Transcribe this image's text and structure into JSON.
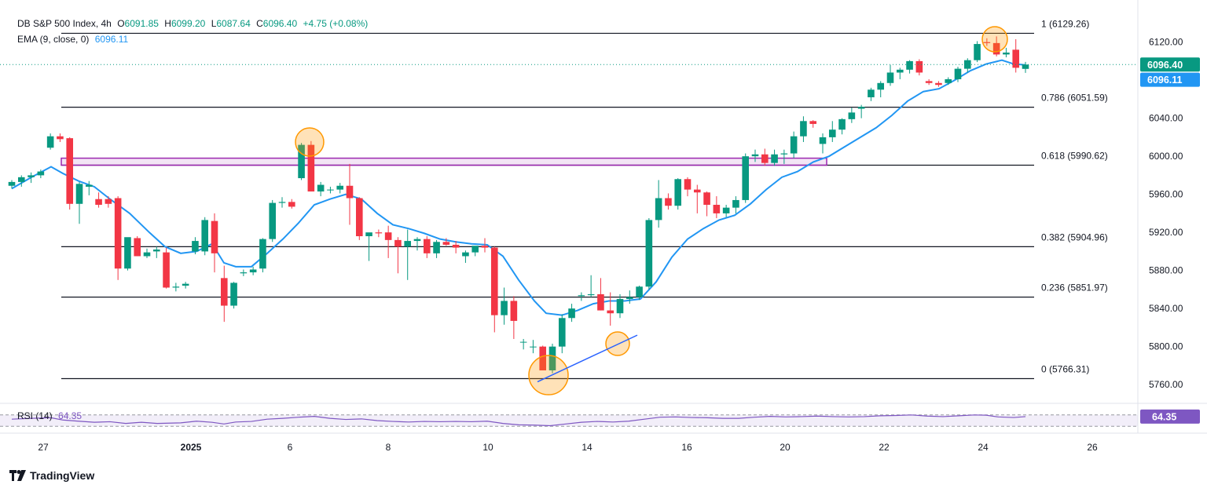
{
  "header": {
    "symbol": "DB S&P 500 Index, 4h",
    "o_label": "O",
    "o": "6091.85",
    "h_label": "H",
    "h": "6099.20",
    "l_label": "L",
    "l": "6087.64",
    "c_label": "C",
    "c": "6096.40",
    "change": "+4.75 (+0.08%)",
    "ema_label": "EMA (9, close, 0)",
    "ema_value": "6096.11",
    "rsi_label": "RSI (14)",
    "rsi_value": "64.35"
  },
  "brand": "TradingView",
  "colors": {
    "up": "#089981",
    "down": "#f23645",
    "ema": "#2196f3",
    "fib": "#131722",
    "zone": "#9c27b0",
    "highlight": "#ff9800",
    "rsi": "#7e57c2",
    "trend": "#2962ff"
  },
  "chart_data": {
    "type": "candlestick",
    "y_range": [
      5742,
      6156
    ],
    "y_ticks": [
      5760,
      5800,
      5840,
      5880,
      5920,
      5960,
      6000,
      6040,
      6120
    ],
    "y_tick_labels": [
      "5760.00",
      "5800.00",
      "5840.00",
      "5880.00",
      "5920.00",
      "5960.00",
      "6000.00",
      "6040.00",
      "6120.00"
    ],
    "x_tick_labels": [
      "27",
      "2025",
      "6",
      "8",
      "10",
      "14",
      "16",
      "20",
      "22",
      "24",
      "26"
    ],
    "last_price_label": "6096.40",
    "ema_price_label": "6096.11",
    "rsi_last": "64.35",
    "fib_levels": [
      {
        "label": "1 (6129.26)",
        "value": 6129.26
      },
      {
        "label": "0.786 (6051.59)",
        "value": 6051.59
      },
      {
        "label": "0.618 (5990.62)",
        "value": 5990.62
      },
      {
        "label": "0.382 (5904.96)",
        "value": 5904.96
      },
      {
        "label": "0.236 (5851.97)",
        "value": 5851.97
      },
      {
        "label": "0 (5766.31)",
        "value": 5766.31
      }
    ],
    "zone": {
      "low": 5990.62,
      "high": 5998.0
    },
    "candles": [
      [
        5969,
        5975,
        5966,
        5973
      ],
      [
        5973,
        5980,
        5968,
        5978
      ],
      [
        5978,
        5983,
        5972,
        5980
      ],
      [
        5980,
        5986,
        5977,
        5984
      ],
      [
        6009,
        6024,
        6007,
        6021
      ],
      [
        6021,
        6024,
        6015,
        6018
      ],
      [
        6019,
        6020,
        5944,
        5950
      ],
      [
        5950,
        5973,
        5929,
        5971
      ],
      [
        5968,
        5974,
        5959,
        5970
      ],
      [
        5955,
        5962,
        5946,
        5949
      ],
      [
        5955,
        5958,
        5946,
        5950
      ],
      [
        5956,
        5958,
        5870,
        5882
      ],
      [
        5882,
        5914,
        5880,
        5915
      ],
      [
        5914,
        5916,
        5895,
        5895
      ],
      [
        5895,
        5903,
        5893,
        5899
      ],
      [
        5900,
        5905,
        5893,
        5902
      ],
      [
        5899,
        5904,
        5861,
        5862
      ],
      [
        5862,
        5867,
        5858,
        5863
      ],
      [
        5864,
        5868,
        5861,
        5866
      ],
      [
        5900,
        5915,
        5897,
        5911
      ],
      [
        5900,
        5936,
        5896,
        5933
      ],
      [
        5932,
        5940,
        5878,
        5898
      ],
      [
        5872,
        5885,
        5826,
        5843
      ],
      [
        5843,
        5868,
        5840,
        5867
      ],
      [
        5877,
        5881,
        5874,
        5878
      ],
      [
        5878,
        5884,
        5875,
        5881
      ],
      [
        5882,
        5914,
        5878,
        5913
      ],
      [
        5913,
        5954,
        5910,
        5951
      ],
      [
        5951,
        5957,
        5946,
        5952
      ],
      [
        5952,
        5955,
        5945,
        5947
      ],
      [
        5977,
        6014,
        5975,
        6012
      ],
      [
        6012,
        6016,
        5963,
        5963
      ],
      [
        5963,
        5973,
        5958,
        5970
      ],
      [
        5965,
        5968,
        5961,
        5965
      ],
      [
        5965,
        5972,
        5961,
        5969
      ],
      [
        5969,
        5992,
        5928,
        5956
      ],
      [
        5956,
        5957,
        5912,
        5916
      ],
      [
        5916,
        5918,
        5890,
        5920
      ],
      [
        5920,
        5923,
        5915,
        5919
      ],
      [
        5920,
        5927,
        5893,
        5912
      ],
      [
        5912,
        5915,
        5877,
        5905
      ],
      [
        5905,
        5923,
        5870,
        5911
      ],
      [
        5911,
        5915,
        5901,
        5913
      ],
      [
        5913,
        5916,
        5893,
        5898
      ],
      [
        5898,
        5912,
        5893,
        5910
      ],
      [
        5910,
        5914,
        5906,
        5907
      ],
      [
        5907,
        5911,
        5898,
        5904
      ],
      [
        5895,
        5901,
        5888,
        5899
      ],
      [
        5899,
        5905,
        5895,
        5906
      ],
      [
        5906,
        5914,
        5899,
        5904
      ],
      [
        5904,
        5905,
        5815,
        5833
      ],
      [
        5833,
        5862,
        5823,
        5848
      ],
      [
        5848,
        5853,
        5808,
        5827
      ],
      [
        5805,
        5808,
        5797,
        5805
      ],
      [
        5800,
        5807,
        5793,
        5800
      ],
      [
        5800,
        5801,
        5776,
        5775
      ],
      [
        5775,
        5803,
        5772,
        5800
      ],
      [
        5800,
        5834,
        5793,
        5830
      ],
      [
        5830,
        5845,
        5826,
        5840
      ],
      [
        5853,
        5857,
        5848,
        5854
      ],
      [
        5854,
        5875,
        5852,
        5855
      ],
      [
        5855,
        5872,
        5838,
        5838
      ],
      [
        5838,
        5857,
        5822,
        5835
      ],
      [
        5835,
        5855,
        5830,
        5850
      ],
      [
        5850,
        5859,
        5845,
        5852
      ],
      [
        5852,
        5864,
        5849,
        5863
      ],
      [
        5863,
        5935,
        5860,
        5933
      ],
      [
        5933,
        5975,
        5925,
        5956
      ],
      [
        5956,
        5961,
        5944,
        5948
      ],
      [
        5948,
        5977,
        5944,
        5976
      ],
      [
        5976,
        5978,
        5958,
        5965
      ],
      [
        5965,
        5970,
        5940,
        5962
      ],
      [
        5962,
        5963,
        5937,
        5949
      ],
      [
        5949,
        5958,
        5935,
        5940
      ],
      [
        5940,
        5949,
        5936,
        5946
      ],
      [
        5946,
        5958,
        5940,
        5954
      ],
      [
        5954,
        6003,
        5951,
        6000
      ],
      [
        6000,
        6007,
        5994,
        6002
      ],
      [
        6002,
        6008,
        5990,
        5993
      ],
      [
        5993,
        6007,
        5990,
        6002
      ],
      [
        6002,
        6007,
        5992,
        6003
      ],
      [
        6003,
        6026,
        5998,
        6021
      ],
      [
        6021,
        6042,
        6015,
        6037
      ],
      [
        6037,
        6038,
        6030,
        6034
      ],
      [
        6013,
        6024,
        6003,
        6020
      ],
      [
        6020,
        6037,
        6015,
        6028
      ],
      [
        6028,
        6040,
        6023,
        6039
      ],
      [
        6039,
        6051,
        6035,
        6046
      ],
      [
        6050,
        6054,
        6040,
        6052
      ],
      [
        6062,
        6072,
        6058,
        6070
      ],
      [
        6070,
        6079,
        6062,
        6077
      ],
      [
        6077,
        6096,
        6074,
        6088
      ],
      [
        6088,
        6093,
        6081,
        6091
      ],
      [
        6091,
        6101,
        6087,
        6100
      ],
      [
        6100,
        6102,
        6085,
        6088
      ],
      [
        6079,
        6081,
        6075,
        6077
      ],
      [
        6077,
        6079,
        6073,
        6075
      ],
      [
        6077,
        6083,
        6075,
        6081
      ],
      [
        6081,
        6094,
        6078,
        6092
      ],
      [
        6092,
        6103,
        6088,
        6101
      ],
      [
        6101,
        6121,
        6099,
        6118
      ],
      [
        6120,
        6124,
        6116,
        6119
      ],
      [
        6119,
        6126,
        6105,
        6107
      ],
      [
        6107,
        6114,
        6104,
        6109
      ],
      [
        6112,
        6123,
        6088,
        6093
      ],
      [
        6091.85,
        6099.2,
        6087.64,
        6096.4
      ]
    ],
    "ema": [
      [
        15,
        5966
      ],
      [
        40,
        5978
      ],
      [
        65,
        5989
      ],
      [
        80,
        5982
      ],
      [
        100,
        5974
      ],
      [
        120,
        5968
      ],
      [
        140,
        5955
      ],
      [
        165,
        5940
      ],
      [
        190,
        5920
      ],
      [
        210,
        5905
      ],
      [
        230,
        5898
      ],
      [
        250,
        5900
      ],
      [
        270,
        5908
      ],
      [
        285,
        5888
      ],
      [
        300,
        5884
      ],
      [
        320,
        5884
      ],
      [
        340,
        5898
      ],
      [
        360,
        5913
      ],
      [
        380,
        5930
      ],
      [
        400,
        5949
      ],
      [
        420,
        5955
      ],
      [
        440,
        5960
      ],
      [
        460,
        5955
      ],
      [
        480,
        5940
      ],
      [
        500,
        5928
      ],
      [
        520,
        5924
      ],
      [
        540,
        5919
      ],
      [
        560,
        5913
      ],
      [
        580,
        5910
      ],
      [
        600,
        5908
      ],
      [
        620,
        5907
      ],
      [
        640,
        5895
      ],
      [
        660,
        5870
      ],
      [
        680,
        5848
      ],
      [
        695,
        5835
      ],
      [
        715,
        5833
      ],
      [
        735,
        5838
      ],
      [
        755,
        5845
      ],
      [
        775,
        5848
      ],
      [
        795,
        5848
      ],
      [
        815,
        5850
      ],
      [
        835,
        5868
      ],
      [
        855,
        5894
      ],
      [
        875,
        5913
      ],
      [
        895,
        5924
      ],
      [
        915,
        5933
      ],
      [
        935,
        5938
      ],
      [
        955,
        5950
      ],
      [
        975,
        5965
      ],
      [
        995,
        5978
      ],
      [
        1015,
        5984
      ],
      [
        1035,
        5994
      ],
      [
        1055,
        6000
      ],
      [
        1075,
        6010
      ],
      [
        1095,
        6020
      ],
      [
        1115,
        6030
      ],
      [
        1135,
        6043
      ],
      [
        1155,
        6058
      ],
      [
        1175,
        6068
      ],
      [
        1195,
        6071
      ],
      [
        1215,
        6080
      ],
      [
        1235,
        6090
      ],
      [
        1255,
        6097
      ],
      [
        1275,
        6101
      ],
      [
        1290,
        6097
      ],
      [
        1305,
        6096
      ]
    ],
    "rsi": [
      [
        15,
        55
      ],
      [
        40,
        58
      ],
      [
        65,
        60
      ],
      [
        80,
        52
      ],
      [
        100,
        48
      ],
      [
        120,
        44
      ],
      [
        140,
        46
      ],
      [
        160,
        40
      ],
      [
        180,
        44
      ],
      [
        200,
        40
      ],
      [
        230,
        42
      ],
      [
        250,
        48
      ],
      [
        270,
        44
      ],
      [
        285,
        38
      ],
      [
        300,
        45
      ],
      [
        320,
        47
      ],
      [
        340,
        55
      ],
      [
        360,
        58
      ],
      [
        380,
        62
      ],
      [
        400,
        65
      ],
      [
        420,
        58
      ],
      [
        440,
        54
      ],
      [
        460,
        56
      ],
      [
        480,
        50
      ],
      [
        500,
        47
      ],
      [
        520,
        45
      ],
      [
        540,
        47
      ],
      [
        560,
        46
      ],
      [
        580,
        47
      ],
      [
        600,
        46
      ],
      [
        620,
        48
      ],
      [
        640,
        40
      ],
      [
        660,
        35
      ],
      [
        680,
        34
      ],
      [
        700,
        32
      ],
      [
        720,
        38
      ],
      [
        740,
        44
      ],
      [
        760,
        47
      ],
      [
        780,
        45
      ],
      [
        800,
        48
      ],
      [
        820,
        55
      ],
      [
        840,
        62
      ],
      [
        860,
        63
      ],
      [
        880,
        61
      ],
      [
        900,
        60
      ],
      [
        920,
        58
      ],
      [
        940,
        58
      ],
      [
        960,
        62
      ],
      [
        980,
        65
      ],
      [
        1000,
        63
      ],
      [
        1020,
        64
      ],
      [
        1040,
        66
      ],
      [
        1060,
        64
      ],
      [
        1080,
        63
      ],
      [
        1100,
        64
      ],
      [
        1120,
        67
      ],
      [
        1140,
        68
      ],
      [
        1160,
        70
      ],
      [
        1180,
        66
      ],
      [
        1200,
        64
      ],
      [
        1220,
        67
      ],
      [
        1240,
        70
      ],
      [
        1255,
        69
      ],
      [
        1270,
        63
      ],
      [
        1290,
        61
      ],
      [
        1305,
        64
      ]
    ]
  }
}
